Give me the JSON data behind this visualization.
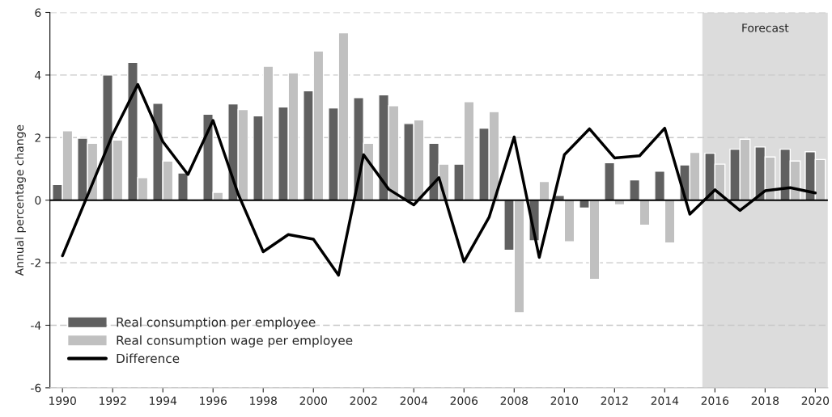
{
  "chart_data": {
    "type": "bar",
    "ylabel": "Annual percentage change",
    "x": [
      1990,
      1991,
      1992,
      1993,
      1994,
      1995,
      1996,
      1997,
      1998,
      1999,
      2000,
      2001,
      2002,
      2003,
      2004,
      2005,
      2006,
      2007,
      2008,
      2009,
      2010,
      2011,
      2012,
      2013,
      2014,
      2015,
      2016,
      2017,
      2018,
      2019,
      2020
    ],
    "series": [
      {
        "name": "Real consumption per employee",
        "color": "#606060",
        "values": [
          0.5,
          1.98,
          4.0,
          4.4,
          3.1,
          0.87,
          2.75,
          3.08,
          2.7,
          2.98,
          3.5,
          2.95,
          3.28,
          3.37,
          2.45,
          1.82,
          1.15,
          2.3,
          -1.6,
          -1.3,
          0.15,
          -0.25,
          1.2,
          0.65,
          0.93,
          1.13,
          1.5,
          1.63,
          1.7,
          1.63,
          1.55
        ]
      },
      {
        "name": "Real consumption wage per employee",
        "color": "#c0c0c0",
        "values": [
          2.22,
          1.82,
          1.92,
          0.72,
          1.25,
          null,
          0.25,
          2.9,
          4.28,
          4.07,
          4.77,
          5.35,
          1.82,
          3.02,
          2.57,
          1.15,
          3.15,
          2.83,
          -3.6,
          0.6,
          -1.33,
          -2.53,
          -0.15,
          -0.8,
          -1.37,
          1.53,
          1.15,
          1.95,
          1.38,
          1.25,
          1.3
        ]
      },
      {
        "name": "Difference",
        "type": "line",
        "color": "#000000",
        "values": [
          -1.78,
          0.15,
          2.1,
          3.7,
          1.87,
          0.82,
          2.55,
          0.2,
          -1.65,
          -1.1,
          -1.25,
          -2.4,
          1.45,
          0.35,
          -0.15,
          0.72,
          -1.97,
          -0.55,
          2.02,
          -1.83,
          1.45,
          2.28,
          1.35,
          1.42,
          2.3,
          -0.45,
          0.33,
          -0.33,
          0.3,
          0.4,
          0.23
        ]
      }
    ],
    "xlim": [
      1989.5,
      2020.5
    ],
    "xticks": [
      1990,
      1992,
      1994,
      1996,
      1998,
      2000,
      2002,
      2004,
      2006,
      2008,
      2010,
      2012,
      2014,
      2016,
      2018,
      2020
    ],
    "ylim": [
      -6,
      6
    ],
    "yticks": [
      -6,
      -4,
      -2,
      0,
      2,
      4,
      6
    ],
    "ref_lines": [
      {
        "axis": "y",
        "value": 0,
        "color": "#000000"
      }
    ],
    "bands": [
      {
        "axis": "x",
        "from": 2015.5,
        "to": 2020.5,
        "label": "Forecast",
        "color": "#dcdcdc"
      }
    ],
    "grid": "y",
    "legend": "bottom left",
    "line_style": "solid",
    "marker": "none"
  }
}
